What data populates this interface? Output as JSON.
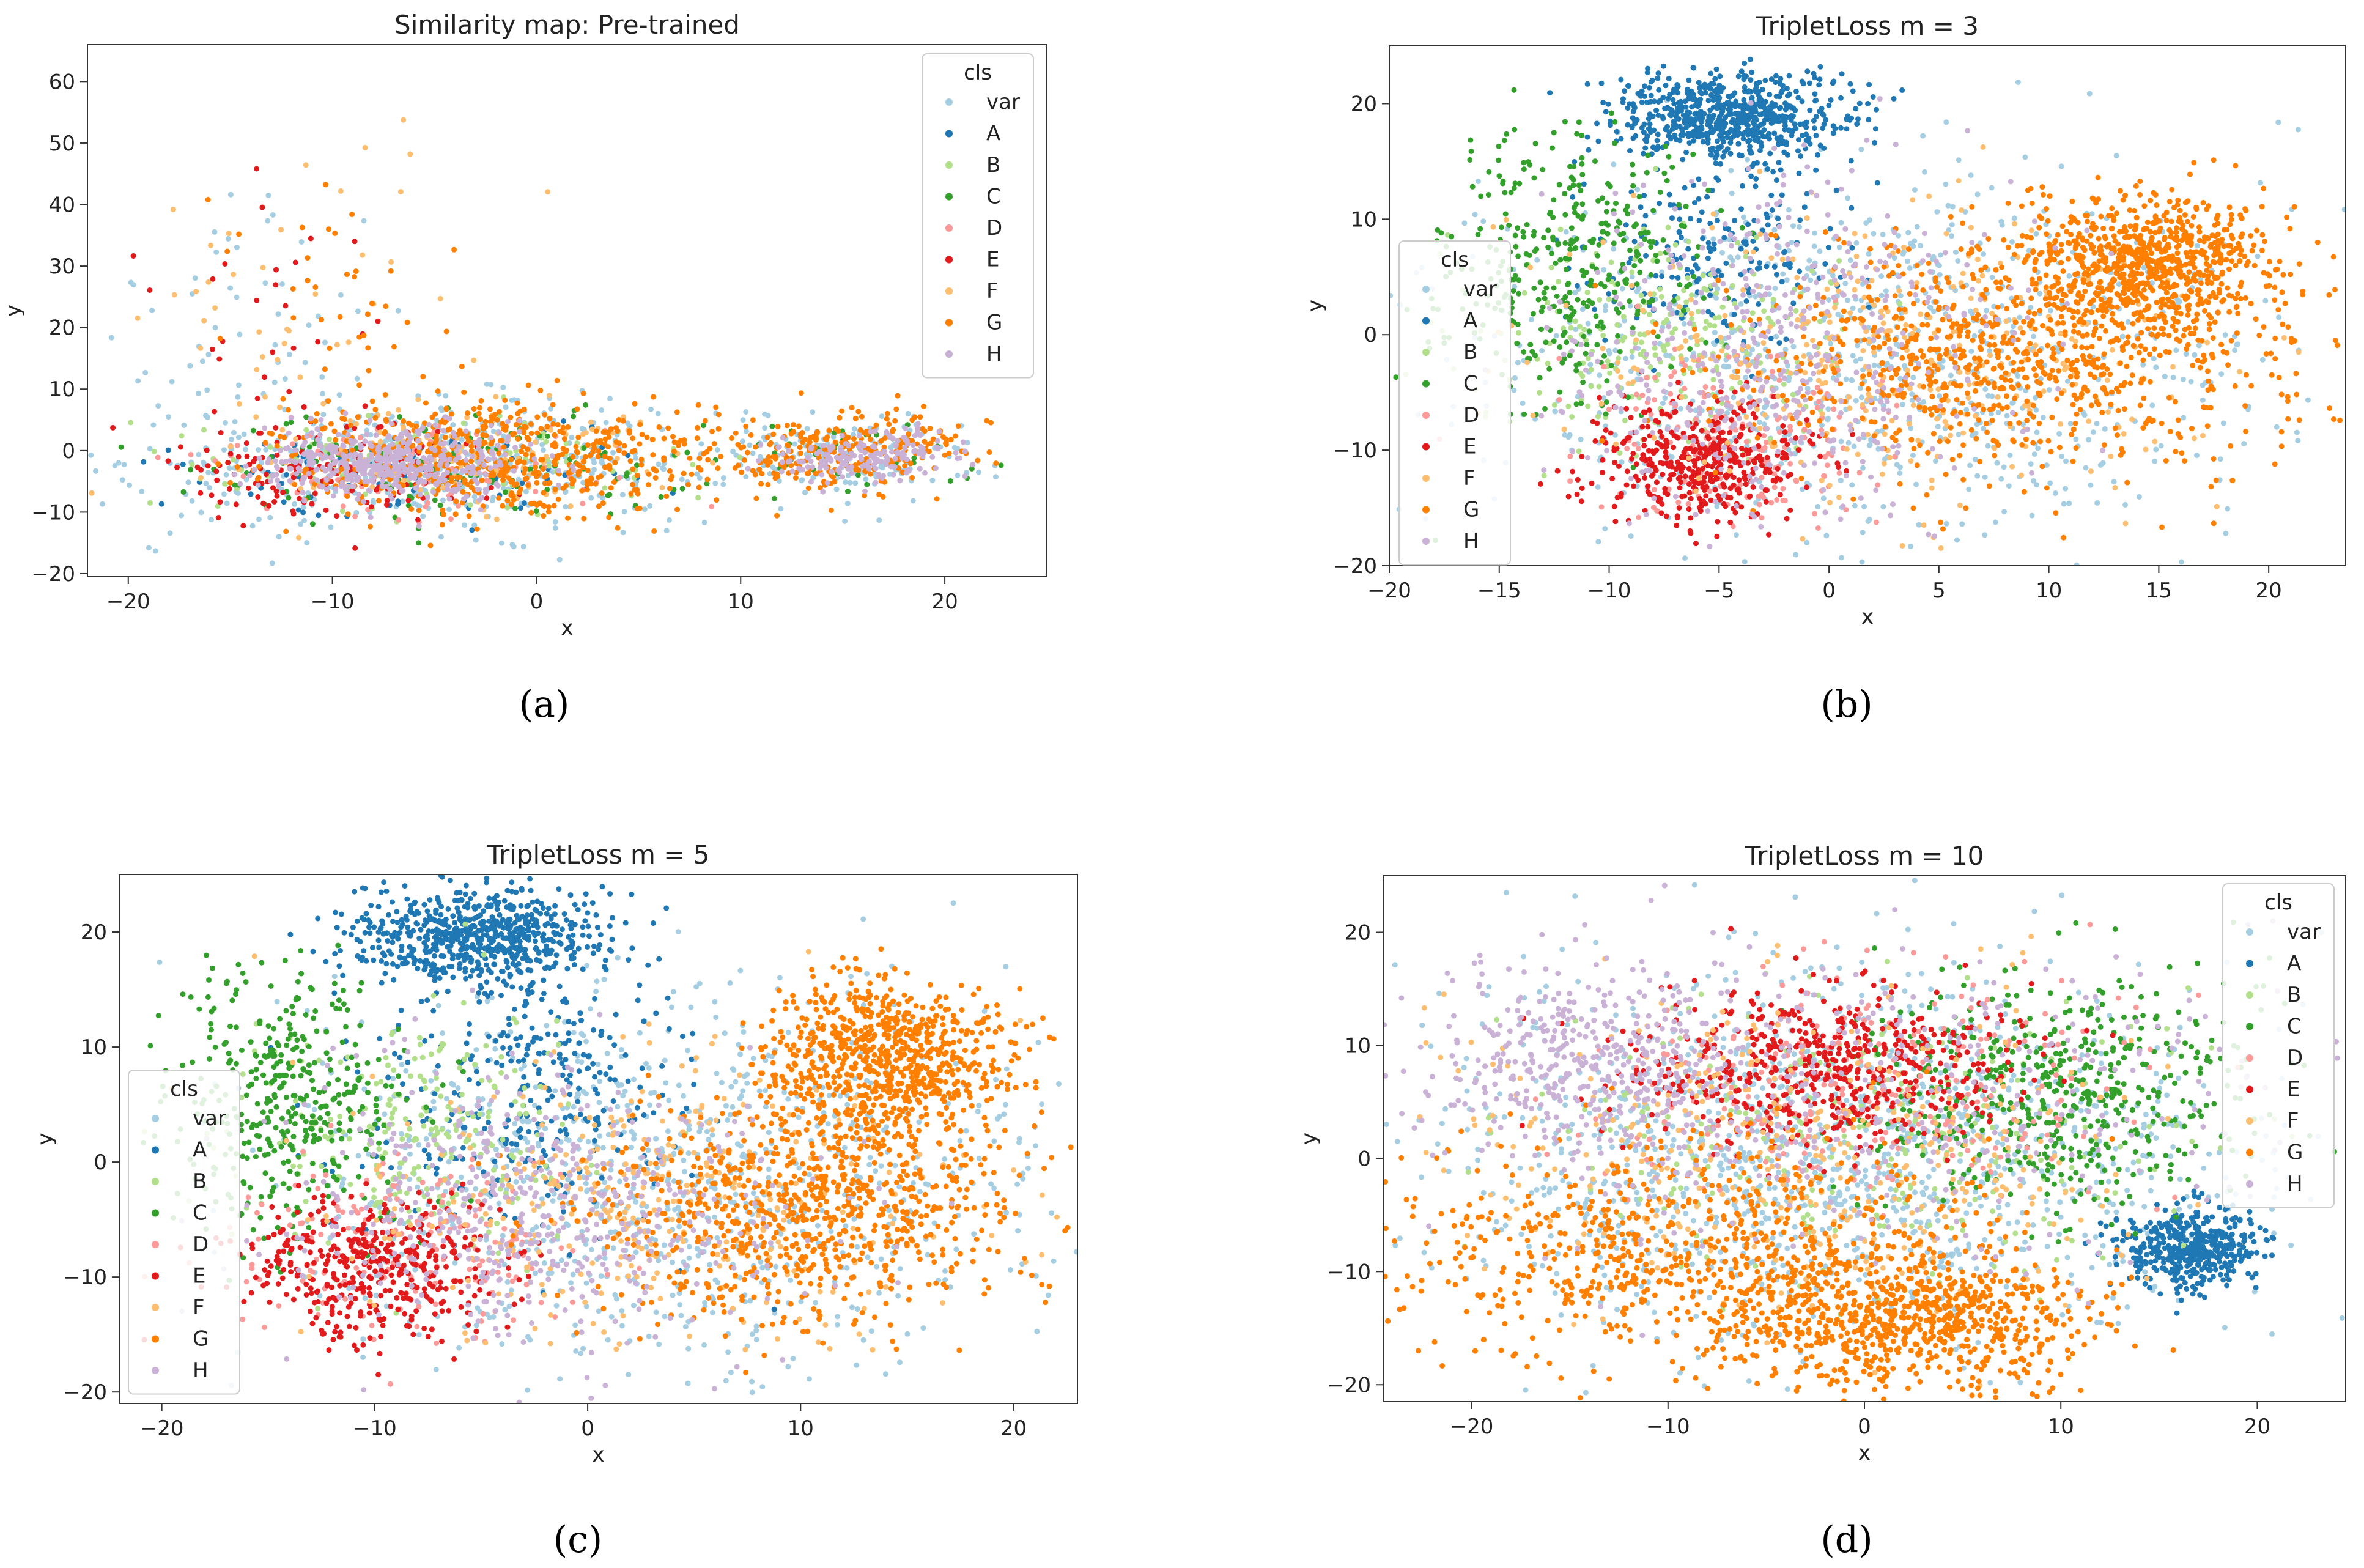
{
  "figure": {
    "captions": [
      "(a)",
      "(b)",
      "(c)",
      "(d)"
    ]
  },
  "chart_data": [
    {
      "type": "scatter",
      "title": "Similarity map: Pre-trained",
      "xlabel": "x",
      "ylabel": "y",
      "xlim": [
        -22,
        25
      ],
      "ylim": [
        -20.5,
        66
      ],
      "xticks": [
        -20,
        -10,
        0,
        10,
        20
      ],
      "yticks": [
        -20,
        -10,
        0,
        10,
        20,
        30,
        40,
        50,
        60
      ],
      "legend": {
        "title": "cls",
        "placement": "top-right",
        "entries": [
          "var",
          "A",
          "B",
          "C",
          "D",
          "E",
          "F",
          "G",
          "H"
        ]
      },
      "clusters": [
        {
          "cls": "var",
          "cx": -5,
          "cy": -2,
          "sx": 7,
          "sy": 5,
          "n": 500
        },
        {
          "cls": "var",
          "cx": 15,
          "cy": -1,
          "sx": 3.5,
          "sy": 3.5,
          "n": 150
        },
        {
          "cls": "var",
          "cx": -14,
          "cy": 22,
          "sx": 4,
          "sy": 12,
          "n": 60
        },
        {
          "cls": "A",
          "cx": -5,
          "cy": -3,
          "sx": 6,
          "sy": 4,
          "n": 90
        },
        {
          "cls": "B",
          "cx": -5,
          "cy": -2,
          "sx": 6,
          "sy": 4,
          "n": 120
        },
        {
          "cls": "C",
          "cx": -4,
          "cy": -3,
          "sx": 6,
          "sy": 4,
          "n": 140
        },
        {
          "cls": "C",
          "cx": 15,
          "cy": -1,
          "sx": 3,
          "sy": 3,
          "n": 40
        },
        {
          "cls": "D",
          "cx": -6,
          "cy": -3,
          "sx": 6,
          "sy": 4,
          "n": 100
        },
        {
          "cls": "E",
          "cx": -10,
          "cy": -3,
          "sx": 4,
          "sy": 4,
          "n": 150
        },
        {
          "cls": "E",
          "cx": -14,
          "cy": 20,
          "sx": 3,
          "sy": 12,
          "n": 30
        },
        {
          "cls": "F",
          "cx": -3,
          "cy": -1,
          "sx": 6,
          "sy": 5,
          "n": 130
        },
        {
          "cls": "F",
          "cx": -12,
          "cy": 25,
          "sx": 4,
          "sy": 12,
          "n": 40
        },
        {
          "cls": "G",
          "cx": -2,
          "cy": -1,
          "sx": 5.5,
          "sy": 4.5,
          "n": 600
        },
        {
          "cls": "G",
          "cx": 15,
          "cy": 0,
          "sx": 3,
          "sy": 3,
          "n": 260
        },
        {
          "cls": "G",
          "cx": -10,
          "cy": 25,
          "sx": 3,
          "sy": 8,
          "n": 35
        },
        {
          "cls": "H",
          "cx": -7,
          "cy": -2,
          "sx": 3,
          "sy": 3,
          "n": 450
        },
        {
          "cls": "H",
          "cx": 16,
          "cy": -1,
          "sx": 2.5,
          "sy": 2,
          "n": 180
        }
      ]
    },
    {
      "type": "scatter",
      "title": "TripletLoss m = 3",
      "xlabel": "x",
      "ylabel": "y",
      "xlim": [
        -20,
        23.5
      ],
      "ylim": [
        -20,
        25
      ],
      "xticks": [
        -20,
        -15,
        -10,
        -5,
        0,
        5,
        10,
        15,
        20
      ],
      "yticks": [
        -20,
        -10,
        0,
        10,
        20
      ],
      "legend": {
        "title": "cls",
        "placement": "center-left",
        "entries": [
          "var",
          "A",
          "B",
          "C",
          "D",
          "E",
          "F",
          "G",
          "H"
        ]
      },
      "clusters": [
        {
          "cls": "var",
          "cx": 2,
          "cy": -2,
          "sx": 9,
          "sy": 8,
          "n": 900
        },
        {
          "cls": "A",
          "cx": -4.5,
          "cy": 19,
          "sx": 2.5,
          "sy": 1.8,
          "n": 650
        },
        {
          "cls": "A",
          "cx": -5,
          "cy": 8,
          "sx": 3,
          "sy": 5,
          "n": 220
        },
        {
          "cls": "B",
          "cx": -7,
          "cy": 0,
          "sx": 4,
          "sy": 5,
          "n": 260
        },
        {
          "cls": "C",
          "cx": -12,
          "cy": 6,
          "sx": 3,
          "sy": 6,
          "n": 380
        },
        {
          "cls": "D",
          "cx": -4,
          "cy": -9,
          "sx": 3.5,
          "sy": 4,
          "n": 200
        },
        {
          "cls": "E",
          "cx": -6,
          "cy": -11,
          "sx": 2.5,
          "sy": 2.5,
          "n": 420
        },
        {
          "cls": "F",
          "cx": 3,
          "cy": -2,
          "sx": 7,
          "sy": 6,
          "n": 380
        },
        {
          "cls": "G",
          "cx": 14.5,
          "cy": 6,
          "sx": 2.8,
          "sy": 3,
          "n": 800
        },
        {
          "cls": "G",
          "cx": 8,
          "cy": -2,
          "sx": 6,
          "sy": 5,
          "n": 800
        },
        {
          "cls": "H",
          "cx": -2,
          "cy": -1,
          "sx": 5,
          "sy": 7,
          "n": 480
        }
      ]
    },
    {
      "type": "scatter",
      "title": "TripletLoss m = 5",
      "xlabel": "x",
      "ylabel": "y",
      "xlim": [
        -22,
        23
      ],
      "ylim": [
        -21,
        25
      ],
      "xticks": [
        -20,
        -10,
        0,
        10,
        20
      ],
      "yticks": [
        -20,
        -10,
        0,
        10,
        20
      ],
      "legend": {
        "title": "cls",
        "placement": "lower-left",
        "entries": [
          "var",
          "A",
          "B",
          "C",
          "D",
          "E",
          "F",
          "G",
          "H"
        ]
      },
      "clusters": [
        {
          "cls": "var",
          "cx": 3,
          "cy": -2,
          "sx": 9,
          "sy": 8,
          "n": 900
        },
        {
          "cls": "A",
          "cx": -5,
          "cy": 19.5,
          "sx": 3,
          "sy": 2,
          "n": 650
        },
        {
          "cls": "A",
          "cx": -3,
          "cy": 6,
          "sx": 4,
          "sy": 6,
          "n": 320
        },
        {
          "cls": "B",
          "cx": -8,
          "cy": 2,
          "sx": 4,
          "sy": 5,
          "n": 260
        },
        {
          "cls": "C",
          "cx": -14,
          "cy": 5,
          "sx": 3,
          "sy": 6,
          "n": 400
        },
        {
          "cls": "D",
          "cx": -8,
          "cy": -7,
          "sx": 4,
          "sy": 4,
          "n": 200
        },
        {
          "cls": "E",
          "cx": -10,
          "cy": -9,
          "sx": 3,
          "sy": 3,
          "n": 420
        },
        {
          "cls": "F",
          "cx": 3,
          "cy": -3,
          "sx": 7,
          "sy": 6,
          "n": 380
        },
        {
          "cls": "G",
          "cx": 14,
          "cy": 9,
          "sx": 3,
          "sy": 3.5,
          "n": 750
        },
        {
          "cls": "G",
          "cx": 10,
          "cy": -4,
          "sx": 5,
          "sy": 5,
          "n": 800
        },
        {
          "cls": "H",
          "cx": -3,
          "cy": -4,
          "sx": 6,
          "sy": 6,
          "n": 520
        }
      ]
    },
    {
      "type": "scatter",
      "title": "TripletLoss m = 10",
      "xlabel": "x",
      "ylabel": "y",
      "xlim": [
        -24.5,
        24.5
      ],
      "ylim": [
        -21.5,
        25
      ],
      "xticks": [
        -20,
        -10,
        0,
        10,
        20
      ],
      "yticks": [
        -20,
        -10,
        0,
        10,
        20
      ],
      "legend": {
        "title": "cls",
        "placement": "top-right",
        "entries": [
          "var",
          "A",
          "B",
          "C",
          "D",
          "E",
          "F",
          "G",
          "H"
        ]
      },
      "clusters": [
        {
          "cls": "var",
          "cx": -2,
          "cy": 0,
          "sx": 11,
          "sy": 8,
          "n": 1300
        },
        {
          "cls": "A",
          "cx": 16.5,
          "cy": -8,
          "sx": 1.8,
          "sy": 1.8,
          "n": 450
        },
        {
          "cls": "B",
          "cx": 0,
          "cy": 2,
          "sx": 8,
          "sy": 6,
          "n": 300
        },
        {
          "cls": "C",
          "cx": 10,
          "cy": 6,
          "sx": 5,
          "sy": 5,
          "n": 520
        },
        {
          "cls": "D",
          "cx": 0,
          "cy": 6,
          "sx": 7,
          "sy": 5,
          "n": 300
        },
        {
          "cls": "E",
          "cx": -2,
          "cy": 8,
          "sx": 5,
          "sy": 3.5,
          "n": 550
        },
        {
          "cls": "F",
          "cx": -4,
          "cy": 0,
          "sx": 9,
          "sy": 7,
          "n": 420
        },
        {
          "cls": "G",
          "cx": 2,
          "cy": -14,
          "sx": 5,
          "sy": 3,
          "n": 800
        },
        {
          "cls": "G",
          "cx": -9,
          "cy": -8,
          "sx": 7,
          "sy": 5,
          "n": 700
        },
        {
          "cls": "H",
          "cx": -14,
          "cy": 9,
          "sx": 4,
          "sy": 4,
          "n": 380
        },
        {
          "cls": "H",
          "cx": 0,
          "cy": 5,
          "sx": 10,
          "sy": 7,
          "n": 400
        }
      ]
    }
  ],
  "colors": {
    "var": "#a6cee3",
    "A": "#1f78b4",
    "B": "#b2df8a",
    "C": "#33a02c",
    "D": "#fb9a99",
    "E": "#e31a1c",
    "F": "#fdbf6f",
    "G": "#ff7f00",
    "H": "#cab2d6"
  }
}
